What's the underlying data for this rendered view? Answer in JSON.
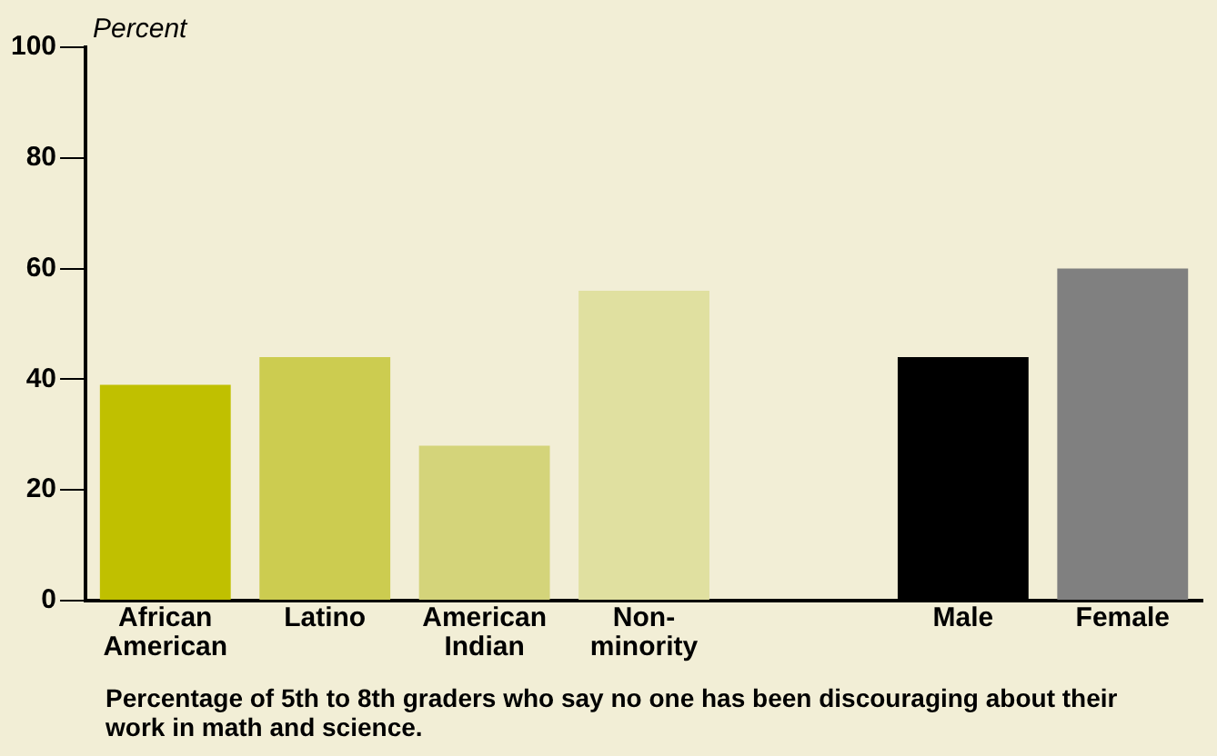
{
  "chart_data": {
    "type": "bar",
    "ylabel": "Percent",
    "categories": [
      "African American",
      "Latino",
      "American Indian",
      "Non-minority",
      null,
      "Male",
      "Female"
    ],
    "values": [
      39,
      44,
      28,
      56,
      null,
      44,
      60
    ],
    "colors": [
      "#c0c000",
      "#cccc50",
      "#d4d47a",
      "#e0e0a0",
      "#f2eed6",
      "#000000",
      "#808080"
    ],
    "ylim": [
      0,
      100
    ],
    "yticks": [
      0,
      20,
      40,
      60,
      80,
      100
    ],
    "grid": false,
    "legend": false,
    "annotations": [
      "Percentage of 5th to 8th graders who say no one has been discouraging about their work in math and science."
    ]
  }
}
